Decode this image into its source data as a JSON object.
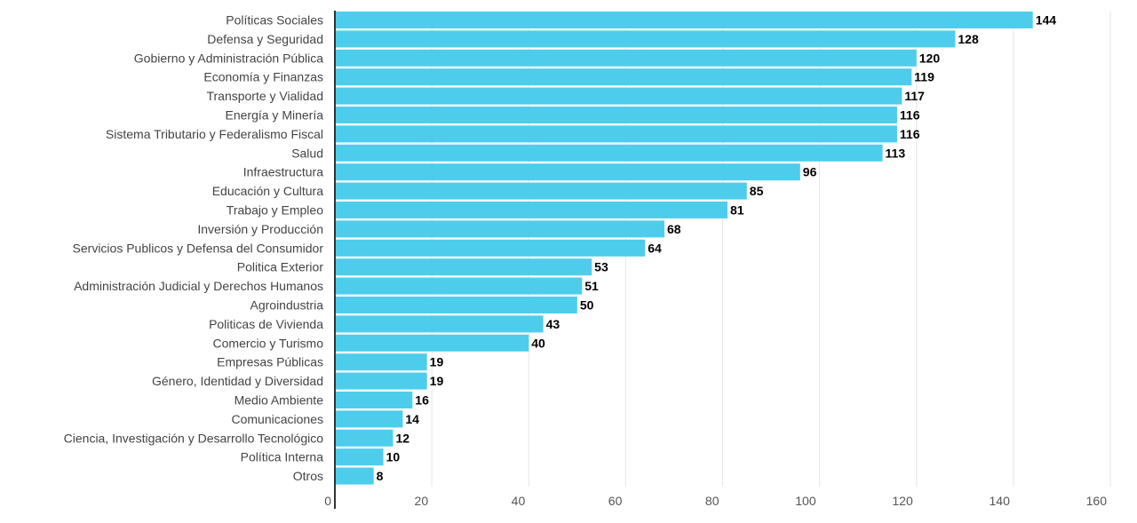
{
  "chart_data": {
    "type": "bar",
    "orientation": "horizontal",
    "categories": [
      "Políticas Sociales",
      "Defensa y Seguridad",
      "Gobierno y Administración Pública",
      "Economía y Finanzas",
      "Transporte y Vialidad",
      "Energía y Minería",
      "Sistema Tributario y Federalismo Fiscal",
      "Salud",
      "Infraestructura",
      "Educación y Cultura",
      "Trabajo y Empleo",
      "Inversión y Producción",
      "Servicios Publicos y Defensa del Consumidor",
      "Politica Exterior",
      "Administración Judicial y Derechos Humanos",
      "Agroindustria",
      "Politicas de Vivienda",
      "Comercio y Turismo",
      "Empresas Públicas",
      "Género, Identidad y Diversidad",
      "Medio Ambiente",
      "Comunicaciones",
      "Ciencia, Investigación y Desarrollo Tecnológico",
      "Política Interna",
      "Otros"
    ],
    "values": [
      144,
      128,
      120,
      119,
      117,
      116,
      116,
      113,
      96,
      85,
      81,
      68,
      64,
      53,
      51,
      50,
      43,
      40,
      19,
      19,
      16,
      14,
      12,
      10,
      8
    ],
    "xlim": [
      0,
      160
    ],
    "x_ticks": [
      0,
      20,
      40,
      60,
      80,
      100,
      120,
      140,
      160
    ],
    "grid": true,
    "bar_color": "#4dcdeb",
    "title": "",
    "xlabel": "",
    "ylabel": ""
  }
}
